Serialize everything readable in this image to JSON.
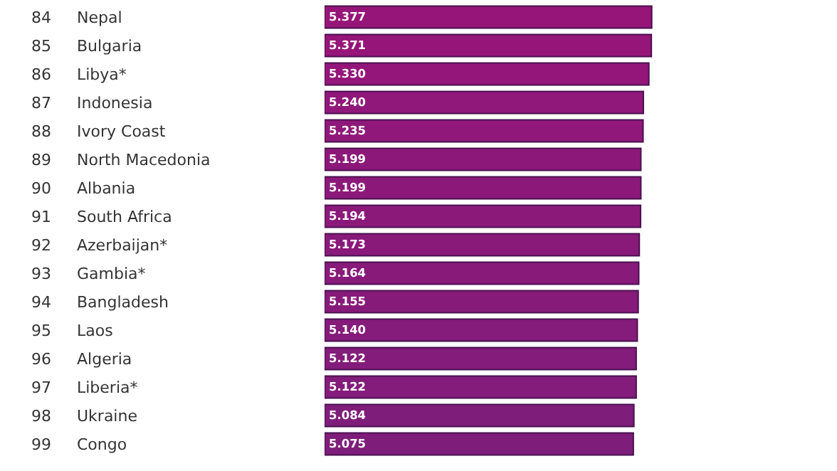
{
  "chart_data": {
    "type": "bar",
    "orientation": "horizontal",
    "categories": [
      "Nepal",
      "Bulgaria",
      "Libya*",
      "Indonesia",
      "Ivory Coast",
      "North Macedonia",
      "Albania",
      "South Africa",
      "Azerbaijan*",
      "Gambia*",
      "Bangladesh",
      "Laos",
      "Algeria",
      "Liberia*",
      "Ukraine",
      "Congo"
    ],
    "y2_categories": [
      "84",
      "85",
      "86",
      "87",
      "88",
      "89",
      "90",
      "91",
      "92",
      "93",
      "94",
      "95",
      "96",
      "97",
      "98",
      "99"
    ],
    "values": [
      5.377,
      5.371,
      5.33,
      5.24,
      5.235,
      5.199,
      5.199,
      5.194,
      5.173,
      5.164,
      5.155,
      5.14,
      5.122,
      5.122,
      5.084,
      5.075
    ],
    "colors": [
      "#961579",
      "#961579",
      "#94167a",
      "#90187a",
      "#8f187a",
      "#8c197a",
      "#8c197a",
      "#8b197a",
      "#891a7a",
      "#881a7a",
      "#871b7a",
      "#851b7a",
      "#831c7a",
      "#831c7a",
      "#7f1d7a",
      "#7e1e7a"
    ],
    "value_labels": [
      "5.377",
      "5.371",
      "5.330",
      "5.240",
      "5.235",
      "5.199",
      "5.199",
      "5.194",
      "5.173",
      "5.164",
      "5.155",
      "5.140",
      "5.122",
      "5.122",
      "5.084",
      "5.075"
    ]
  }
}
